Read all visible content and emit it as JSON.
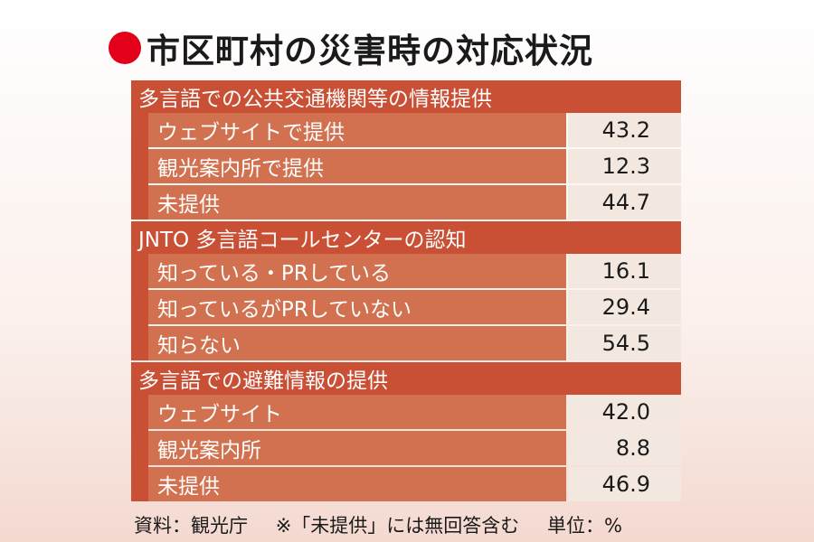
{
  "title": "市区町村の災害時の対応状況",
  "colors": {
    "accent_red": "#e2001a",
    "header": "#c94f35",
    "row_label": "#d2714f",
    "value_bg": "#f2e8df"
  },
  "chart_data": {
    "type": "table",
    "title": "市区町村の災害時の対応状況",
    "unit": "%",
    "sections": [
      {
        "header": "多言語での公共交通機関等の情報提供",
        "rows": [
          {
            "label": "ウェブサイトで提供",
            "value": "43.2"
          },
          {
            "label": "観光案内所で提供",
            "value": "12.3"
          },
          {
            "label": "未提供",
            "value": "44.7"
          }
        ]
      },
      {
        "header": "JNTO 多言語コールセンターの認知",
        "rows": [
          {
            "label": "知っている・PRしている",
            "value": "16.1"
          },
          {
            "label": "知っているがPRしていない",
            "value": "29.4"
          },
          {
            "label": "知らない",
            "value": "54.5"
          }
        ]
      },
      {
        "header": "多言語での避難情報の提供",
        "rows": [
          {
            "label": "ウェブサイト",
            "value": "42.0"
          },
          {
            "label": "観光案内所",
            "value": "8.8"
          },
          {
            "label": "未提供",
            "value": "46.9"
          }
        ]
      }
    ]
  },
  "footer": {
    "source": "資料：観光庁",
    "note": "※「未提供」には無回答含む",
    "unit": "単位：%"
  }
}
